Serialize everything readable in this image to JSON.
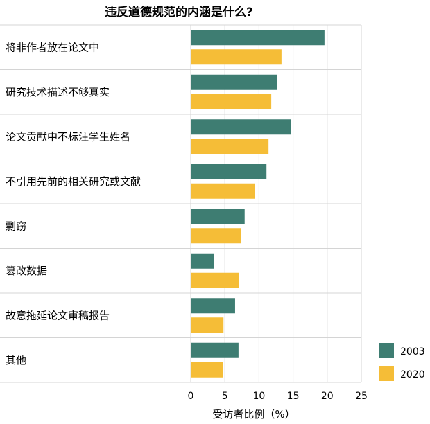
{
  "chart_data": {
    "type": "bar",
    "orientation": "horizontal",
    "title": "违反道德规范的内涵是什么?",
    "xlabel": "受访者比例（%）",
    "ylabel": "",
    "xlim": [
      0,
      25
    ],
    "xticks": [
      0,
      5,
      10,
      15,
      20,
      25
    ],
    "grid": true,
    "legend_position": "bottom-right",
    "categories": [
      "将非作者放在论文中",
      "研究技术描述不够真实",
      "论文贡献中不标注学生姓名",
      "不引用先前的相关研究或文献",
      "剽窃",
      "篡改数据",
      "故意拖延论文审稿报告",
      "其他"
    ],
    "series": [
      {
        "name": "2003",
        "color": "#3e7d72",
        "values": [
          19.6,
          12.7,
          14.7,
          11.1,
          7.9,
          3.4,
          6.5,
          7.0
        ]
      },
      {
        "name": "2020",
        "color": "#f5bd37",
        "values": [
          13.3,
          11.8,
          11.4,
          9.4,
          7.4,
          7.1,
          4.8,
          4.7
        ]
      }
    ]
  }
}
